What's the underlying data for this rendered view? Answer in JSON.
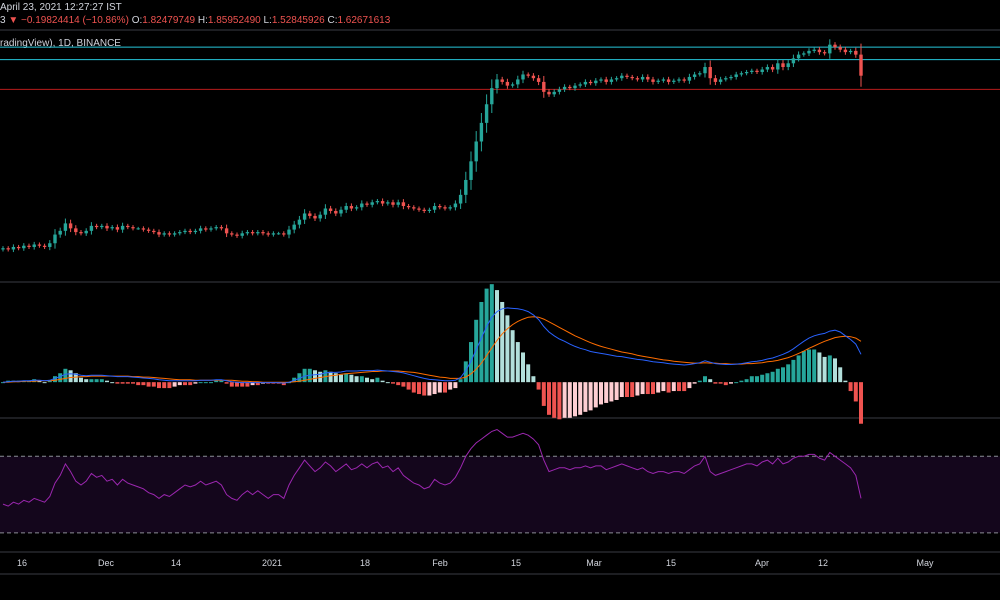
{
  "header": {
    "date": "April 23, 2021 12:27:27 IST",
    "change_prefix": "3",
    "change_arrow": "▼",
    "change": "−0.19824414 (−10.86%)",
    "o_label": "O:",
    "o_value": "1.82479749",
    "h_label": "H:",
    "h_value": "1.85952490",
    "l_label": "L:",
    "l_value": "1.52845926",
    "c_label": "C:",
    "c_value": "1.62671613",
    "symbol_line": "radingView), 1D, BINANCE"
  },
  "colors": {
    "background": "#000000",
    "up": "#26a69a",
    "down": "#ef5350",
    "level": "#26c6da",
    "support": "#b71c1c",
    "macd": "#2962ff",
    "signal": "#ff6d00",
    "hist_up_strong": "#26a69a",
    "hist_up_weak": "#b2dfdb",
    "hist_down_strong": "#ef5350",
    "hist_down_weak": "#ffcdd2",
    "rsi": "#9c27b0",
    "rsi_band": "#14061c"
  },
  "chart_data": [
    {
      "type": "candlestick",
      "title": "",
      "x_ticks": [
        "16",
        "Dec",
        "14",
        "2021",
        "18",
        "Feb",
        "15",
        "Mar",
        "15",
        "Apr",
        "12",
        "May"
      ],
      "horizontal_levels": [
        1.86,
        1.76,
        1.52
      ],
      "ylim": [
        0.0,
        1.95
      ],
      "close": [
        0.24,
        0.23,
        0.25,
        0.24,
        0.26,
        0.25,
        0.27,
        0.26,
        0.25,
        0.28,
        0.35,
        0.38,
        0.44,
        0.4,
        0.37,
        0.36,
        0.38,
        0.42,
        0.41,
        0.42,
        0.4,
        0.41,
        0.39,
        0.42,
        0.41,
        0.4,
        0.4,
        0.39,
        0.38,
        0.37,
        0.35,
        0.36,
        0.35,
        0.36,
        0.37,
        0.38,
        0.37,
        0.38,
        0.4,
        0.39,
        0.4,
        0.41,
        0.4,
        0.36,
        0.35,
        0.34,
        0.36,
        0.37,
        0.36,
        0.37,
        0.36,
        0.35,
        0.36,
        0.36,
        0.35,
        0.39,
        0.43,
        0.47,
        0.52,
        0.5,
        0.48,
        0.51,
        0.56,
        0.54,
        0.52,
        0.55,
        0.58,
        0.56,
        0.57,
        0.6,
        0.59,
        0.61,
        0.62,
        0.6,
        0.61,
        0.59,
        0.61,
        0.58,
        0.57,
        0.56,
        0.55,
        0.54,
        0.55,
        0.58,
        0.57,
        0.56,
        0.57,
        0.6,
        0.67,
        0.79,
        0.94,
        1.1,
        1.25,
        1.4,
        1.53,
        1.6,
        1.58,
        1.55,
        1.56,
        1.6,
        1.64,
        1.63,
        1.61,
        1.58,
        1.5,
        1.48,
        1.5,
        1.52,
        1.54,
        1.53,
        1.55,
        1.56,
        1.58,
        1.57,
        1.59,
        1.6,
        1.58,
        1.6,
        1.61,
        1.63,
        1.62,
        1.61,
        1.6,
        1.62,
        1.6,
        1.58,
        1.59,
        1.6,
        1.58,
        1.59,
        1.6,
        1.59,
        1.62,
        1.64,
        1.65,
        1.7,
        1.61,
        1.58,
        1.6,
        1.61,
        1.62,
        1.64,
        1.65,
        1.66,
        1.67,
        1.66,
        1.68,
        1.7,
        1.68,
        1.73,
        1.7,
        1.73,
        1.77,
        1.8,
        1.81,
        1.83,
        1.84,
        1.82,
        1.81,
        1.88,
        1.86,
        1.84,
        1.82,
        1.83,
        1.8,
        1.63
      ]
    },
    {
      "type": "line",
      "title": "",
      "series": [
        {
          "key": "macd",
          "values": [
            0,
            0.001,
            0.002,
            0.002,
            0.003,
            0.003,
            0.004,
            0.004,
            0.003,
            0.004,
            0.008,
            0.012,
            0.017,
            0.018,
            0.017,
            0.015,
            0.014,
            0.015,
            0.015,
            0.015,
            0.014,
            0.013,
            0.012,
            0.012,
            0.012,
            0.011,
            0.01,
            0.009,
            0.008,
            0.007,
            0.005,
            0.004,
            0.003,
            0.003,
            0.003,
            0.003,
            0.003,
            0.003,
            0.004,
            0.004,
            0.004,
            0.005,
            0.005,
            0.003,
            0.001,
            0,
            -0.001,
            -0.001,
            -0.001,
            -0.001,
            -0.001,
            -0.001,
            -0.001,
            -0.001,
            -0.002,
            0,
            0.004,
            0.008,
            0.013,
            0.015,
            0.016,
            0.017,
            0.02,
            0.021,
            0.021,
            0.022,
            0.024,
            0.024,
            0.024,
            0.025,
            0.025,
            0.025,
            0.026,
            0.025,
            0.024,
            0.023,
            0.022,
            0.02,
            0.017,
            0.014,
            0.011,
            0.008,
            0.006,
            0.005,
            0.004,
            0.003,
            0.003,
            0.004,
            0.01,
            0.025,
            0.045,
            0.07,
            0.095,
            0.12,
            0.14,
            0.152,
            0.158,
            0.16,
            0.159,
            0.158,
            0.156,
            0.152,
            0.145,
            0.135,
            0.12,
            0.108,
            0.1,
            0.093,
            0.088,
            0.082,
            0.077,
            0.073,
            0.07,
            0.066,
            0.064,
            0.062,
            0.06,
            0.058,
            0.056,
            0.055,
            0.053,
            0.051,
            0.049,
            0.048,
            0.046,
            0.044,
            0.043,
            0.042,
            0.04,
            0.039,
            0.038,
            0.037,
            0.038,
            0.04,
            0.042,
            0.046,
            0.043,
            0.04,
            0.039,
            0.038,
            0.038,
            0.039,
            0.04,
            0.042,
            0.044,
            0.045,
            0.047,
            0.05,
            0.052,
            0.056,
            0.06,
            0.065,
            0.072,
            0.08,
            0.088,
            0.095,
            0.1,
            0.103,
            0.105,
            0.11,
            0.112,
            0.108,
            0.1,
            0.092,
            0.082,
            0.06
          ]
        },
        {
          "key": "signal",
          "values": [
            0,
            0,
            0.001,
            0.001,
            0.002,
            0.002,
            0.002,
            0.003,
            0.003,
            0.003,
            0.004,
            0.006,
            0.008,
            0.01,
            0.011,
            0.012,
            0.012,
            0.013,
            0.013,
            0.013,
            0.013,
            0.013,
            0.013,
            0.013,
            0.013,
            0.012,
            0.012,
            0.011,
            0.011,
            0.01,
            0.009,
            0.008,
            0.007,
            0.006,
            0.005,
            0.005,
            0.005,
            0.004,
            0.004,
            0.004,
            0.004,
            0.004,
            0.004,
            0.004,
            0.004,
            0.003,
            0.002,
            0.002,
            0.001,
            0.001,
            0,
            0,
            0,
            0,
            0,
            0,
            0.001,
            0.002,
            0.004,
            0.006,
            0.008,
            0.01,
            0.012,
            0.014,
            0.015,
            0.017,
            0.018,
            0.019,
            0.02,
            0.021,
            0.022,
            0.023,
            0.023,
            0.024,
            0.024,
            0.024,
            0.024,
            0.023,
            0.022,
            0.021,
            0.019,
            0.017,
            0.015,
            0.013,
            0.011,
            0.01,
            0.008,
            0.008,
            0.008,
            0.011,
            0.018,
            0.028,
            0.041,
            0.057,
            0.074,
            0.09,
            0.104,
            0.115,
            0.124,
            0.131,
            0.136,
            0.14,
            0.141,
            0.14,
            0.136,
            0.13,
            0.124,
            0.118,
            0.112,
            0.106,
            0.1,
            0.095,
            0.09,
            0.085,
            0.081,
            0.077,
            0.074,
            0.071,
            0.068,
            0.065,
            0.063,
            0.061,
            0.058,
            0.056,
            0.054,
            0.052,
            0.05,
            0.048,
            0.047,
            0.045,
            0.044,
            0.043,
            0.042,
            0.041,
            0.041,
            0.042,
            0.041,
            0.041,
            0.04,
            0.04,
            0.039,
            0.039,
            0.039,
            0.04,
            0.04,
            0.041,
            0.042,
            0.044,
            0.045,
            0.047,
            0.05,
            0.053,
            0.057,
            0.062,
            0.067,
            0.073,
            0.078,
            0.083,
            0.088,
            0.092,
            0.096,
            0.098,
            0.099,
            0.098,
            0.095,
            0.088
          ]
        }
      ],
      "ylim": [
        -0.06,
        0.19
      ]
    },
    {
      "type": "line",
      "title": "",
      "band": [
        30,
        70
      ],
      "ylim": [
        20,
        90
      ],
      "values": [
        45,
        44,
        46,
        45,
        47,
        46,
        48,
        47,
        46,
        49,
        56,
        60,
        66,
        62,
        57,
        55,
        57,
        61,
        59,
        60,
        57,
        58,
        55,
        58,
        56,
        55,
        54,
        53,
        51,
        50,
        48,
        50,
        49,
        51,
        53,
        55,
        54,
        55,
        57,
        55,
        56,
        57,
        55,
        50,
        48,
        47,
        50,
        52,
        50,
        52,
        50,
        48,
        50,
        50,
        48,
        55,
        60,
        64,
        68,
        65,
        62,
        64,
        67,
        65,
        62,
        64,
        66,
        63,
        64,
        66,
        64,
        66,
        67,
        64,
        65,
        62,
        64,
        60,
        58,
        56,
        55,
        53,
        54,
        58,
        56,
        55,
        56,
        59,
        64,
        70,
        74,
        77,
        79,
        81,
        83,
        84,
        82,
        80,
        80,
        81,
        82,
        81,
        79,
        76,
        68,
        62,
        63,
        64,
        64,
        63,
        64,
        64,
        65,
        64,
        65,
        65,
        63,
        64,
        65,
        66,
        65,
        64,
        63,
        64,
        62,
        61,
        62,
        62,
        61,
        62,
        62,
        61,
        63,
        65,
        66,
        70,
        62,
        60,
        61,
        62,
        63,
        64,
        65,
        66,
        66,
        65,
        67,
        68,
        66,
        69,
        66,
        67,
        69,
        70,
        70,
        71,
        71,
        69,
        68,
        72,
        70,
        68,
        66,
        64,
        60,
        48
      ]
    }
  ]
}
